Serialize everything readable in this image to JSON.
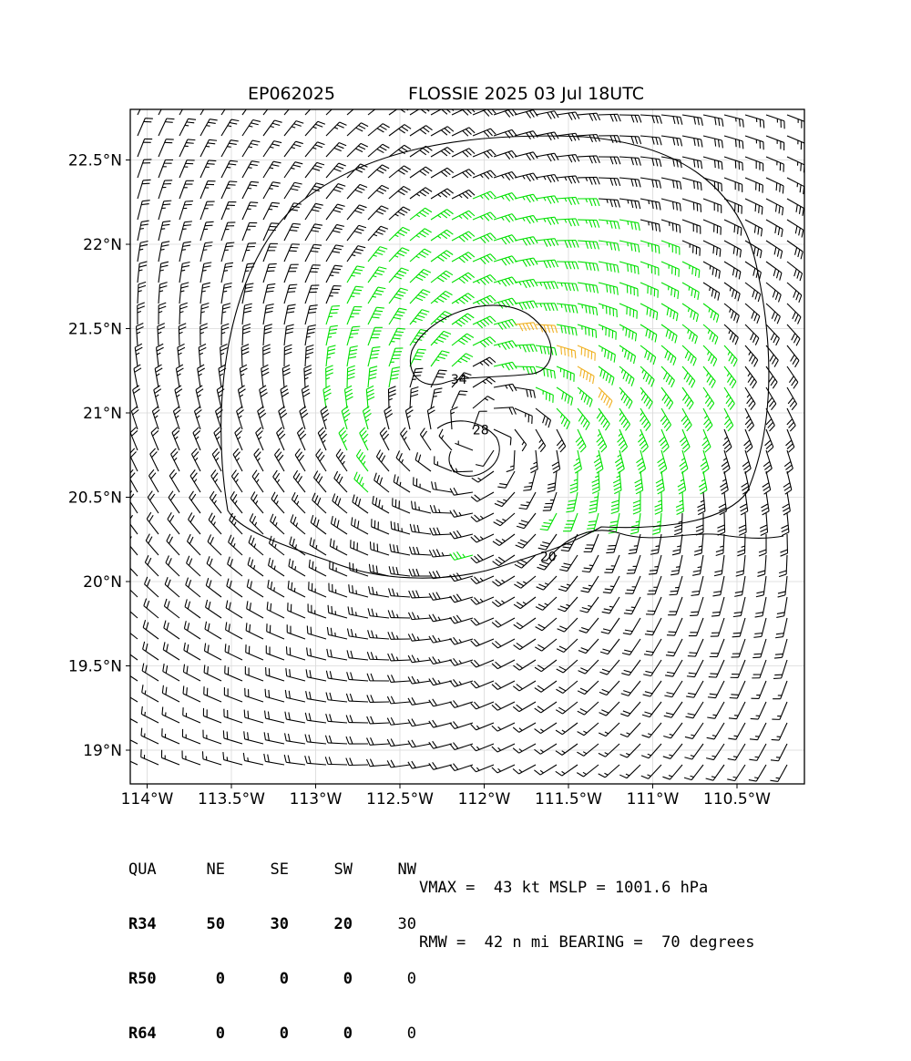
{
  "chart_data": {
    "type": "wind-barb-map",
    "storm_id": "EP062025",
    "storm_title": "FLOSSIE 2025 03 Jul 18UTC",
    "xlim": [
      -114.1,
      -110.1
    ],
    "ylim": [
      18.8,
      22.8
    ],
    "x_ticks": [
      {
        "value": -114.0,
        "label": "114°W"
      },
      {
        "value": -113.5,
        "label": "113.5°W"
      },
      {
        "value": -113.0,
        "label": "113°W"
      },
      {
        "value": -112.5,
        "label": "112.5°W"
      },
      {
        "value": -112.0,
        "label": "112°W"
      },
      {
        "value": -111.5,
        "label": "111.5°W"
      },
      {
        "value": -111.0,
        "label": "111°W"
      },
      {
        "value": -110.5,
        "label": "110.5°W"
      }
    ],
    "y_ticks": [
      {
        "value": 19.0,
        "label": "19°N"
      },
      {
        "value": 19.5,
        "label": "19.5°N"
      },
      {
        "value": 20.0,
        "label": "20°N"
      },
      {
        "value": 20.5,
        "label": "20.5°N"
      },
      {
        "value": 21.0,
        "label": "21°N"
      },
      {
        "value": 21.5,
        "label": "21.5°N"
      },
      {
        "value": 22.0,
        "label": "22°N"
      },
      {
        "value": 22.5,
        "label": "22.5°N"
      }
    ],
    "grid": true,
    "storm_center": {
      "lon": -112.0,
      "lat": 20.85
    },
    "barb_colors": {
      "below_34kt": "#000000",
      "34_to_49kt": "#00e000",
      "50kt_plus": "#f0b020"
    },
    "contours": [
      {
        "level": "34",
        "label_lon": -112.15,
        "label_lat": 21.2
      },
      {
        "level": "28",
        "label_lon": -112.02,
        "label_lat": 20.9
      },
      {
        "level": "20",
        "label_lon": -111.62,
        "label_lat": 20.15
      }
    ]
  },
  "wind_radii": {
    "header": [
      "QUA",
      "NE",
      "SE",
      "SW",
      "NW"
    ],
    "rows": [
      {
        "label": "R34",
        "values": [
          "50",
          "30",
          "20",
          "30"
        ]
      },
      {
        "label": "R50",
        "values": [
          "0",
          "0",
          "0",
          "0"
        ]
      },
      {
        "label": "R64",
        "values": [
          "0",
          "0",
          "0",
          "0"
        ]
      }
    ]
  },
  "stats": {
    "line1": "VMAX =  43 kt MSLP = 1001.6 hPa",
    "line2": "RMW =  42 n mi BEARING =  70 degrees"
  }
}
